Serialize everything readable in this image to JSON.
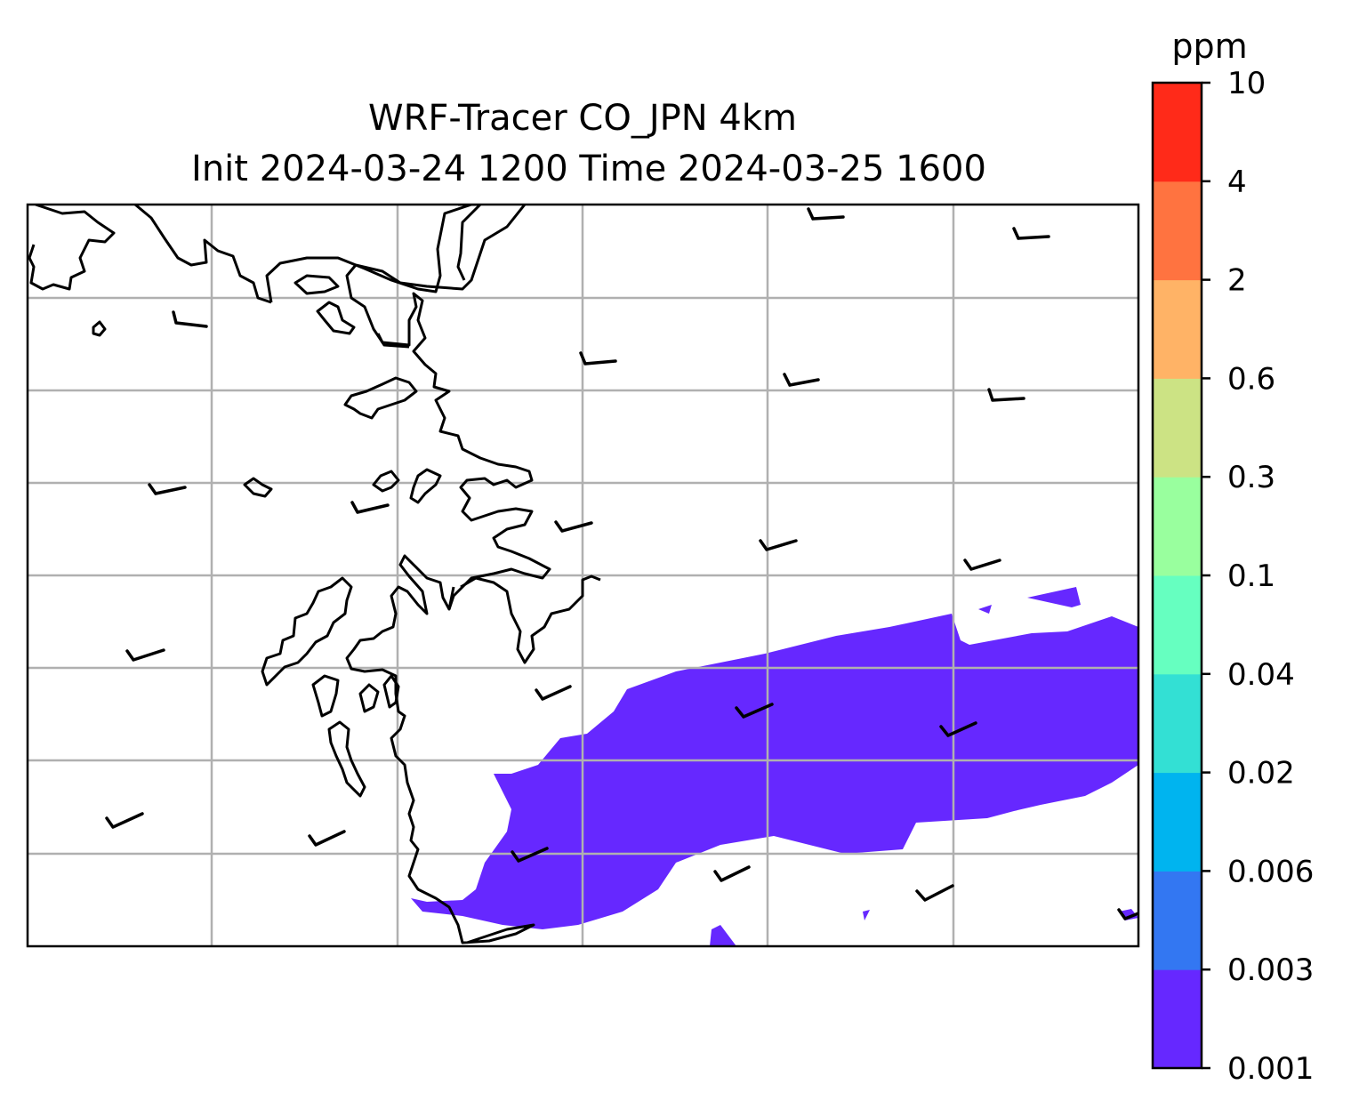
{
  "figure": {
    "title_line1": "WRF-Tracer CO_JPN 4km",
    "title_line2": "Init 2024-03-24 1200 Time 2024-03-25 1600"
  },
  "map": {
    "field": "CO tracer concentration",
    "plume_color": "#6628ff",
    "gridlines": "on",
    "coastline_color": "#000000",
    "wind_barbs": "shown"
  },
  "colorbar": {
    "unit": "ppm",
    "ticks": [
      "0.001",
      "0.003",
      "0.006",
      "0.02",
      "0.04",
      "0.1",
      "0.3",
      "0.6",
      "2",
      "4",
      "10"
    ],
    "colors": [
      "#6628ff",
      "#3377f2",
      "#00b4ef",
      "#33e0d4",
      "#66ffc0",
      "#99ff9e",
      "#cce384",
      "#ffb366",
      "#ff7340",
      "#ff2a19"
    ]
  }
}
